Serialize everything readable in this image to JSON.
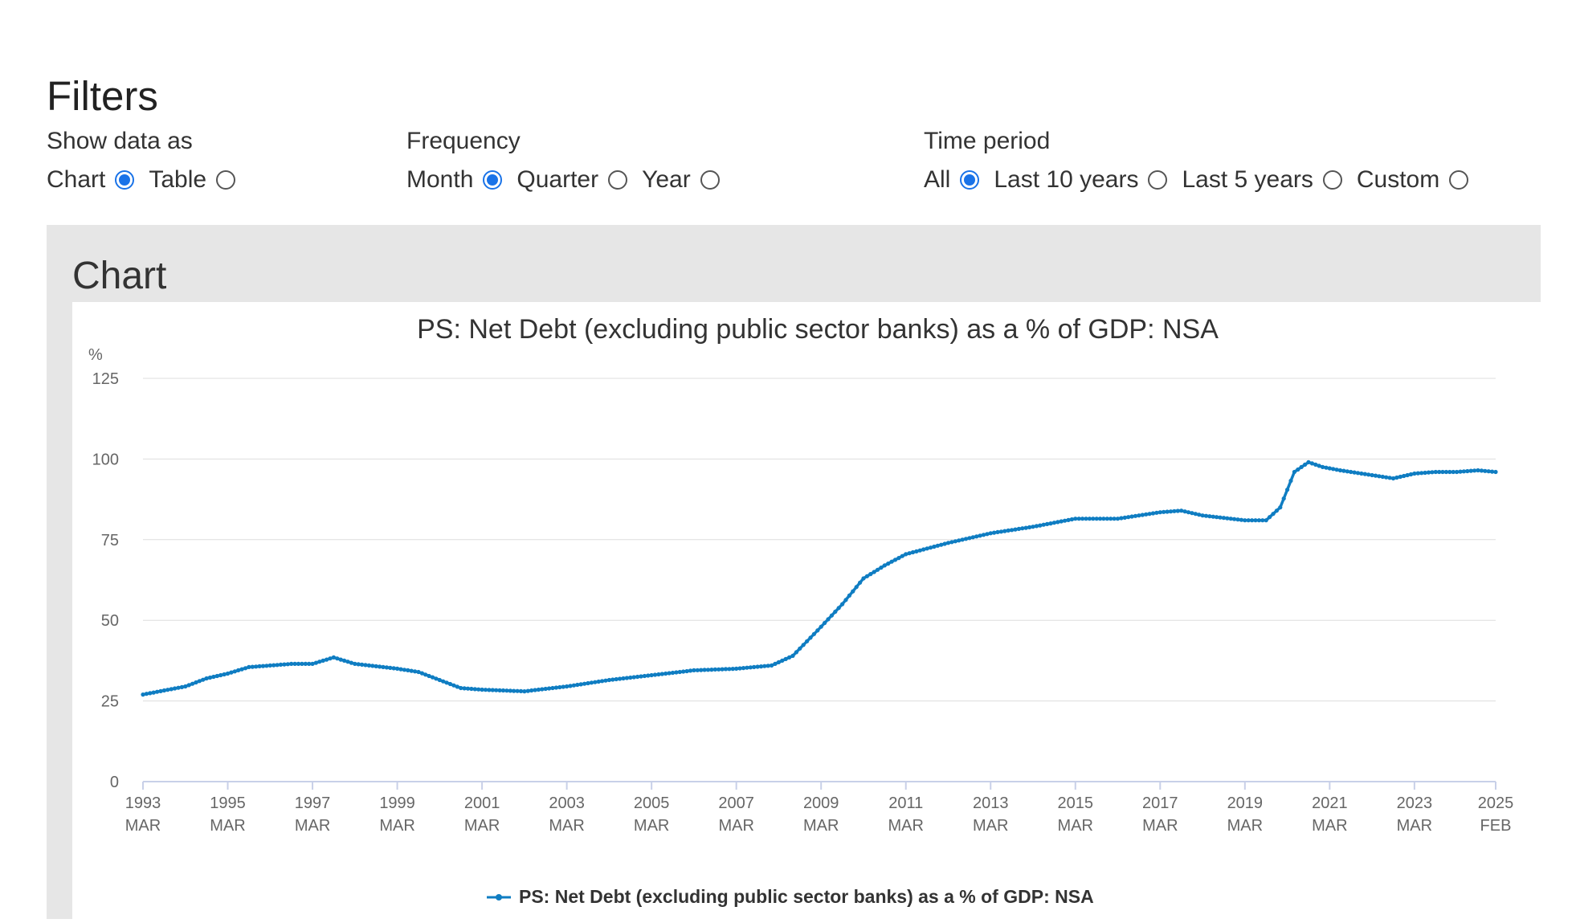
{
  "filters": {
    "title": "Filters",
    "show_data_as": {
      "label": "Show data as",
      "options": [
        "Chart",
        "Table"
      ],
      "selected": "Chart"
    },
    "frequency": {
      "label": "Frequency",
      "options": [
        "Month",
        "Quarter",
        "Year"
      ],
      "selected": "Month"
    },
    "time_period": {
      "label": "Time period",
      "options": [
        "All",
        "Last 10 years",
        "Last 5 years",
        "Custom"
      ],
      "selected": "All"
    }
  },
  "panel": {
    "title": "Chart"
  },
  "colors": {
    "series": "#0f7dc2",
    "grid": "#dddddd",
    "axis": "#c8d0e8",
    "text": "#666666",
    "panel": "#e6e6e6",
    "radio_checked": "#1a73e8"
  },
  "chart_data": {
    "type": "line",
    "title": "PS: Net Debt (excluding public sector banks) as a % of GDP: NSA",
    "ylabel": "%",
    "ylim": [
      0,
      125
    ],
    "yticks": [
      0,
      25,
      50,
      75,
      100,
      125
    ],
    "x_start": "1993-03",
    "x_end": "2025-02",
    "frequency": "monthly",
    "xticks": [
      {
        "date": "1993-03",
        "year": "1993",
        "month": "MAR"
      },
      {
        "date": "1995-03",
        "year": "1995",
        "month": "MAR"
      },
      {
        "date": "1997-03",
        "year": "1997",
        "month": "MAR"
      },
      {
        "date": "1999-03",
        "year": "1999",
        "month": "MAR"
      },
      {
        "date": "2001-03",
        "year": "2001",
        "month": "MAR"
      },
      {
        "date": "2003-03",
        "year": "2003",
        "month": "MAR"
      },
      {
        "date": "2005-03",
        "year": "2005",
        "month": "MAR"
      },
      {
        "date": "2007-03",
        "year": "2007",
        "month": "MAR"
      },
      {
        "date": "2009-03",
        "year": "2009",
        "month": "MAR"
      },
      {
        "date": "2011-03",
        "year": "2011",
        "month": "MAR"
      },
      {
        "date": "2013-03",
        "year": "2013",
        "month": "MAR"
      },
      {
        "date": "2015-03",
        "year": "2015",
        "month": "MAR"
      },
      {
        "date": "2017-03",
        "year": "2017",
        "month": "MAR"
      },
      {
        "date": "2019-03",
        "year": "2019",
        "month": "MAR"
      },
      {
        "date": "2021-03",
        "year": "2021",
        "month": "MAR"
      },
      {
        "date": "2023-03",
        "year": "2023",
        "month": "MAR"
      },
      {
        "date": "2025-02",
        "year": "2025",
        "month": "FEB"
      }
    ],
    "series": [
      {
        "name": "PS: Net Debt (excluding public sector banks) as a % of GDP: NSA",
        "color": "#0f7dc2",
        "anchors": [
          [
            "1993-03",
            27
          ],
          [
            "1994-03",
            29.5
          ],
          [
            "1994-09",
            32
          ],
          [
            "1995-03",
            33.5
          ],
          [
            "1995-09",
            35.5
          ],
          [
            "1996-03",
            36
          ],
          [
            "1996-09",
            36.5
          ],
          [
            "1997-03",
            36.5
          ],
          [
            "1997-09",
            38.5
          ],
          [
            "1998-03",
            36.5
          ],
          [
            "1999-03",
            35
          ],
          [
            "1999-09",
            34
          ],
          [
            "2000-03",
            31.5
          ],
          [
            "2000-09",
            29
          ],
          [
            "2001-03",
            28.5
          ],
          [
            "2002-03",
            28
          ],
          [
            "2003-03",
            29.5
          ],
          [
            "2004-03",
            31.5
          ],
          [
            "2005-03",
            33
          ],
          [
            "2006-03",
            34.5
          ],
          [
            "2007-03",
            35
          ],
          [
            "2008-01",
            36
          ],
          [
            "2008-07",
            39
          ],
          [
            "2009-03",
            48
          ],
          [
            "2009-09",
            55
          ],
          [
            "2010-03",
            63
          ],
          [
            "2010-09",
            67
          ],
          [
            "2011-03",
            70.5
          ],
          [
            "2012-03",
            74
          ],
          [
            "2013-03",
            77
          ],
          [
            "2014-03",
            79
          ],
          [
            "2015-03",
            81.5
          ],
          [
            "2016-03",
            81.5
          ],
          [
            "2017-03",
            83.5
          ],
          [
            "2017-09",
            84
          ],
          [
            "2018-03",
            82.5
          ],
          [
            "2019-03",
            81
          ],
          [
            "2019-09",
            81
          ],
          [
            "2020-01",
            85
          ],
          [
            "2020-05",
            96
          ],
          [
            "2020-09",
            99
          ],
          [
            "2021-01",
            97.5
          ],
          [
            "2021-06",
            96.5
          ],
          [
            "2022-03",
            95
          ],
          [
            "2022-09",
            94
          ],
          [
            "2023-03",
            95.5
          ],
          [
            "2023-09",
            96
          ],
          [
            "2024-03",
            96
          ],
          [
            "2024-09",
            96.5
          ],
          [
            "2025-02",
            96
          ]
        ]
      }
    ],
    "legend": {
      "position": "bottom"
    },
    "grid": true
  }
}
